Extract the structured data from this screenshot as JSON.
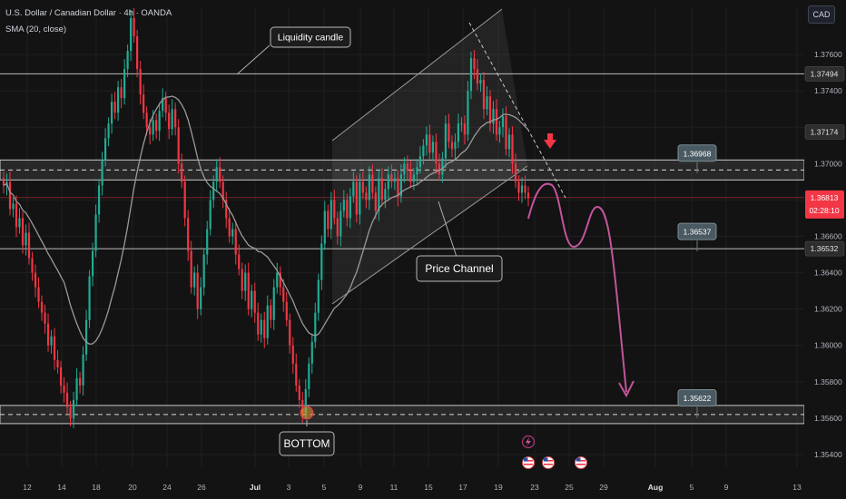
{
  "header": {
    "title": "U.S. Dollar / Canadian Dollar · 4h · OANDA",
    "indicator": "SMA (20, close)",
    "currency": "CAD"
  },
  "colors": {
    "bull": "#22ab94",
    "bear": "#f23645",
    "sma": "#9a9a9a",
    "projection": "#c2559a",
    "zone": "#3a3a3a",
    "last_price_tag": "#f23645",
    "background": "#131313",
    "grid": "#1f1f1f"
  },
  "chart_data": {
    "type": "candlestick",
    "ylim": [
      1.3533,
      1.3786
    ],
    "y_ticks": [
      1.354,
      1.356,
      1.358,
      1.36,
      1.362,
      1.364,
      1.366,
      1.368,
      1.37,
      1.372,
      1.374,
      1.376
    ],
    "y_tick_labels": [
      "1.35400",
      "1.35600",
      "1.35800",
      "1.36000",
      "1.36200",
      "1.36400",
      "1.36600",
      "1.36800",
      "1.37000",
      "1.37200",
      "1.37400",
      "1.37600"
    ],
    "x_tick_labels": [
      "12",
      "14",
      "18",
      "20",
      "24",
      "26",
      "Jul",
      "3",
      "5",
      "9",
      "11",
      "15",
      "17",
      "19",
      "23",
      "25",
      "29",
      "Aug",
      "5",
      "9",
      "13"
    ],
    "price_labels": [
      {
        "value": 1.37494,
        "label": "1.37494"
      },
      {
        "value": 1.37174,
        "label": "1.37174"
      },
      {
        "value": 1.36532,
        "label": "1.36532"
      }
    ],
    "last_price": {
      "value": 1.36813,
      "label": "1.36813",
      "countdown": "02:28:10"
    },
    "level_tags": [
      {
        "value": 1.36968,
        "label": "1.36968"
      },
      {
        "value": 1.36537,
        "label": "1.36537"
      },
      {
        "value": 1.35622,
        "label": "1.35622"
      }
    ],
    "zones": [
      {
        "from": 1.3691,
        "to": 1.3702
      },
      {
        "from": 1.3557,
        "to": 1.3567
      }
    ],
    "annotations": {
      "liquidity": "Liquidity candle",
      "channel": "Price Channel",
      "bottom": "BOTTOM"
    },
    "sma_period": 20,
    "candles_close": [
      1.3688,
      1.369,
      1.3675,
      1.3678,
      1.3665,
      1.367,
      1.3655,
      1.3662,
      1.3648,
      1.364,
      1.3632,
      1.3624,
      1.3618,
      1.3612,
      1.36,
      1.3605,
      1.3592,
      1.3588,
      1.3578,
      1.3574,
      1.3566,
      1.356,
      1.357,
      1.3582,
      1.3578,
      1.3595,
      1.3614,
      1.3638,
      1.3652,
      1.3672,
      1.3688,
      1.3702,
      1.3714,
      1.3722,
      1.3734,
      1.3728,
      1.3742,
      1.3736,
      1.3752,
      1.3762,
      1.378,
      1.377,
      1.3752,
      1.3738,
      1.3728,
      1.372,
      1.3716,
      1.3724,
      1.3718,
      1.3729,
      1.3736,
      1.3728,
      1.3719,
      1.373,
      1.372,
      1.37,
      1.369,
      1.367,
      1.3652,
      1.3632,
      1.364,
      1.362,
      1.3632,
      1.365,
      1.3664,
      1.368,
      1.369,
      1.3698,
      1.369,
      1.368,
      1.367,
      1.366,
      1.3664,
      1.365,
      1.3642,
      1.363,
      1.364,
      1.362,
      1.363,
      1.3618,
      1.3606,
      1.3614,
      1.3604,
      1.3622,
      1.3614,
      1.3632,
      1.364,
      1.3632,
      1.3624,
      1.3614,
      1.36,
      1.359,
      1.3578,
      1.357,
      1.3563,
      1.3576,
      1.359,
      1.3602,
      1.3618,
      1.3636,
      1.3656,
      1.3674,
      1.3664,
      1.368,
      1.367,
      1.366,
      1.3674,
      1.368,
      1.367,
      1.3682,
      1.369,
      1.3672,
      1.369,
      1.3684,
      1.368,
      1.3694,
      1.3684,
      1.3674,
      1.3692,
      1.368,
      1.3686,
      1.3694,
      1.369,
      1.3692,
      1.3682,
      1.3694,
      1.37,
      1.3696,
      1.369,
      1.3694,
      1.3698,
      1.3704,
      1.371,
      1.3716,
      1.3706,
      1.3712,
      1.37,
      1.3694,
      1.3703,
      1.3722,
      1.3712,
      1.3708,
      1.3712,
      1.3722,
      1.3722,
      1.3716,
      1.374,
      1.3758,
      1.3752,
      1.3744,
      1.3746,
      1.373,
      1.3737,
      1.3722,
      1.373,
      1.3716,
      1.372,
      1.3726,
      1.3708,
      1.3716,
      1.37,
      1.369,
      1.3684,
      1.3688,
      1.3684,
      1.3681
    ]
  }
}
